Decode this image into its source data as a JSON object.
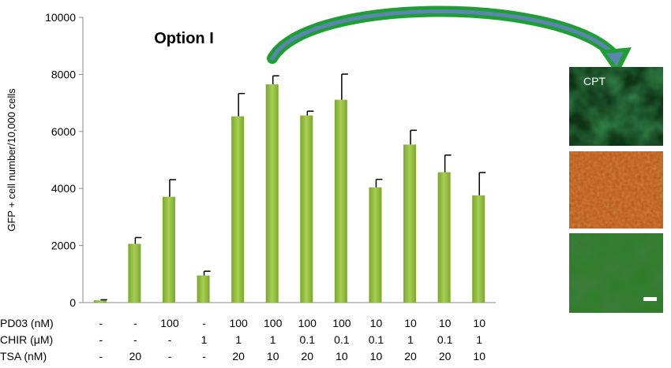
{
  "chart_data": {
    "type": "bar",
    "title": "Option I",
    "ylabel": "GFP + cell number/10,000 cells",
    "ylim": [
      0,
      10000
    ],
    "yticks": [
      0,
      2000,
      4000,
      6000,
      8000,
      10000
    ],
    "ytick_labels": [
      "0",
      "2000",
      "4000",
      "6000",
      "8000",
      "10000"
    ],
    "values": [
      80,
      2060,
      3710,
      950,
      6530,
      7650,
      6560,
      7110,
      4040,
      5540,
      4570,
      3760
    ],
    "errors": [
      20,
      220,
      600,
      150,
      800,
      300,
      150,
      900,
      280,
      500,
      600,
      800
    ],
    "bar_color": "#8fbf3a",
    "factors": [
      {
        "label": "PD03 (nM)",
        "values": [
          "-",
          "-",
          "100",
          "-",
          "100",
          "100",
          "100",
          "100",
          "10",
          "10",
          "10",
          "10"
        ]
      },
      {
        "label": "CHIR (μM)",
        "values": [
          "-",
          "-",
          "-",
          "1",
          "1",
          "1",
          "0.1",
          "0.1",
          "0.1",
          "1",
          "0.1",
          "1"
        ]
      },
      {
        "label": "TSA (nM)",
        "values": [
          "-",
          "20",
          "-",
          "-",
          "20",
          "10",
          "20",
          "10",
          "10",
          "20",
          "20",
          "10"
        ]
      }
    ]
  },
  "micrographs": {
    "top_label": "CPT",
    "colors": [
      "#0d3315",
      "#b6561a",
      "#2f7d2a"
    ]
  },
  "arrow_color": "#2eaa3a"
}
